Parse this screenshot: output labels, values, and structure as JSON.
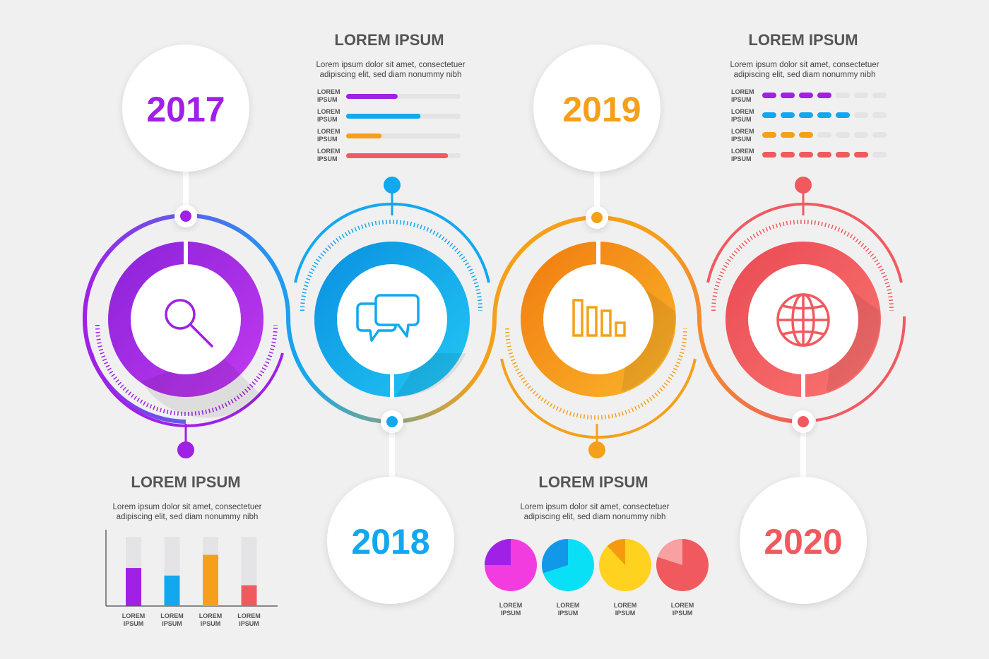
{
  "colors": {
    "purple": "#a020e6",
    "blue": "#12a8f0",
    "orange": "#f5a01a",
    "red": "#f05a5f",
    "track": "#e4e4e6",
    "background": "#f0f0f1"
  },
  "milestones": [
    {
      "year": "2017",
      "icon": "search-icon",
      "color": "#a020e6"
    },
    {
      "year": "2018",
      "icon": "chat-bubbles-icon",
      "color": "#12a8f0"
    },
    {
      "year": "2019",
      "icon": "bar-chart-icon",
      "color": "#f5a01a"
    },
    {
      "year": "2020",
      "icon": "globe-icon",
      "color": "#f05a5f"
    }
  ],
  "panels": {
    "top_left": {
      "title": "LOREM IPSUM",
      "text_line1": "Lorem ipsum dolor sit amet, consectetuer",
      "text_line2": "adipiscing elit, sed diam nonummy nibh",
      "bars": [
        {
          "label_line1": "LOREM",
          "label_line2": "IPSUM",
          "value": 0.45,
          "color": "#a020e6"
        },
        {
          "label_line1": "LOREM",
          "label_line2": "IPSUM",
          "value": 0.65,
          "color": "#12a8f0"
        },
        {
          "label_line1": "LOREM",
          "label_line2": "IPSUM",
          "value": 0.31,
          "color": "#f5a01a"
        },
        {
          "label_line1": "LOREM",
          "label_line2": "IPSUM",
          "value": 0.89,
          "color": "#f05a5f"
        }
      ]
    },
    "top_right": {
      "title": "LOREM IPSUM",
      "text_line1": "Lorem ipsum dolor sit amet, consectetuer",
      "text_line2": "adipiscing elit, sed diam nonummy nibh",
      "rows": [
        {
          "label_line1": "LOREM",
          "label_line2": "IPSUM",
          "filled": 4,
          "total": 7,
          "color": "#a020e6"
        },
        {
          "label_line1": "LOREM",
          "label_line2": "IPSUM",
          "filled": 5,
          "total": 7,
          "color": "#12a8f0"
        },
        {
          "label_line1": "LOREM",
          "label_line2": "IPSUM",
          "filled": 3,
          "total": 7,
          "color": "#f5a01a"
        },
        {
          "label_line1": "LOREM",
          "label_line2": "IPSUM",
          "filled": 6,
          "total": 7,
          "color": "#f05a5f"
        }
      ]
    },
    "bottom_left": {
      "title": "LOREM IPSUM",
      "text_line1": "Lorem ipsum dolor sit amet, consectetuer",
      "text_line2": "adipiscing elit, sed diam nonummy nibh",
      "columns": [
        {
          "label_line1": "LOREM",
          "label_line2": "IPSUM",
          "value": 0.55,
          "color": "#a020e6"
        },
        {
          "label_line1": "LOREM",
          "label_line2": "IPSUM",
          "value": 0.44,
          "color": "#12a8f0"
        },
        {
          "label_line1": "LOREM",
          "label_line2": "IPSUM",
          "value": 0.74,
          "color": "#f5a01a"
        },
        {
          "label_line1": "LOREM",
          "label_line2": "IPSUM",
          "value": 0.3,
          "color": "#f05a5f"
        }
      ]
    },
    "bottom_center": {
      "title": "LOREM IPSUM",
      "text_line1": "Lorem ipsum dolor sit amet, consectetuer",
      "text_line2": "adipiscing elit, sed diam nonummy nibh",
      "pies": [
        {
          "label_line1": "LOREM",
          "label_line2": "IPSUM",
          "share": 0.75,
          "main": "#f23ce0",
          "slice": "#a020e6"
        },
        {
          "label_line1": "LOREM",
          "label_line2": "IPSUM",
          "share": 0.7,
          "main": "#0ae0f5",
          "slice": "#1298e8"
        },
        {
          "label_line1": "LOREM",
          "label_line2": "IPSUM",
          "share": 0.88,
          "main": "#ffd21f",
          "slice": "#f59a10"
        },
        {
          "label_line1": "LOREM",
          "label_line2": "IPSUM",
          "share": 0.8,
          "main": "#f05a5f",
          "slice": "#f8a0a2"
        }
      ]
    }
  }
}
